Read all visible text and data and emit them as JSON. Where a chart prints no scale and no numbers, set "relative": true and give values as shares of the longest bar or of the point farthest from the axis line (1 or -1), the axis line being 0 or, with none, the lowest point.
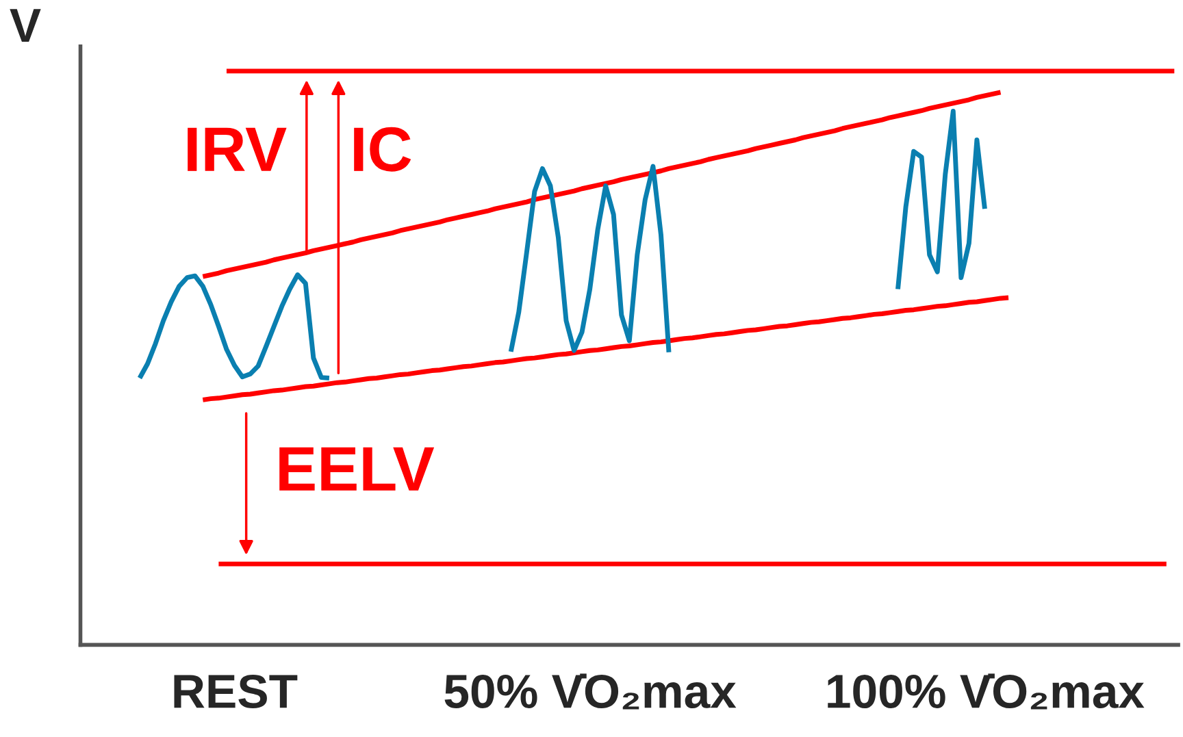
{
  "chart_data": {
    "type": "line",
    "relative": true,
    "ylabel": "V",
    "categories": [
      null,
      null,
      null,
      null,
      null,
      null,
      null,
      null,
      null,
      null,
      null,
      null,
      null,
      null,
      null,
      null,
      null,
      null,
      null,
      "REST",
      null,
      null,
      null,
      null,
      null,
      null,
      null,
      null,
      null,
      null,
      null,
      null,
      null,
      null,
      null,
      null,
      null,
      null,
      null,
      null,
      null,
      null,
      null,
      null,
      null,
      null,
      null,
      null,
      null,
      null,
      null,
      null,
      null,
      null,
      null,
      null,
      null,
      null,
      null,
      null,
      null,
      null,
      null,
      null,
      "50% V̇O₂max",
      null,
      null,
      null,
      null,
      null,
      null,
      null,
      null,
      null,
      null,
      null,
      null,
      null,
      null,
      null,
      null,
      null,
      null,
      null,
      null,
      null,
      null,
      null,
      null,
      null,
      null,
      null,
      null,
      null,
      null,
      null,
      null,
      null,
      null,
      null,
      null,
      null,
      null,
      null,
      null,
      null,
      null,
      null,
      null,
      null,
      null,
      null,
      null,
      null,
      "100% V̇O₂max",
      null,
      null,
      null,
      null,
      null,
      null,
      null,
      null,
      null,
      null,
      null,
      null,
      null,
      null,
      null,
      null,
      null,
      null,
      null,
      null,
      null,
      null,
      null,
      null
    ],
    "grid": false,
    "legend": false,
    "series": [
      {
        "color": "#ff0000",
        "values": [
          null,
          null,
          null,
          null,
          null,
          null,
          null,
          null,
          null,
          null,
          null,
          null,
          null,
          null,
          null,
          null,
          null,
          null,
          1.0,
          1.0,
          1.0,
          1.0,
          1.0,
          1.0,
          1.0,
          1.0,
          1.0,
          1.0,
          1.0,
          1.0,
          1.0,
          1.0,
          1.0,
          1.0,
          1.0,
          1.0,
          1.0,
          1.0,
          1.0,
          1.0,
          1.0,
          1.0,
          1.0,
          1.0,
          1.0,
          1.0,
          1.0,
          1.0,
          1.0,
          1.0,
          1.0,
          1.0,
          1.0,
          1.0,
          1.0,
          1.0,
          1.0,
          1.0,
          1.0,
          1.0,
          1.0,
          1.0,
          1.0,
          1.0,
          1.0,
          1.0,
          1.0,
          1.0,
          1.0,
          1.0,
          1.0,
          1.0,
          1.0,
          1.0,
          1.0,
          1.0,
          1.0,
          1.0,
          1.0,
          1.0,
          1.0,
          1.0,
          1.0,
          1.0,
          1.0,
          1.0,
          1.0,
          1.0,
          1.0,
          1.0,
          1.0,
          1.0,
          1.0,
          1.0,
          1.0,
          1.0,
          1.0,
          1.0,
          1.0,
          1.0,
          1.0,
          1.0,
          1.0,
          1.0,
          1.0,
          1.0,
          1.0,
          1.0,
          1.0,
          1.0,
          1.0,
          1.0,
          1.0,
          1.0,
          1.0,
          1.0,
          1.0,
          1.0,
          1.0,
          1.0,
          1.0,
          1.0,
          1.0,
          1.0,
          1.0,
          1.0,
          1.0,
          1.0,
          1.0,
          1.0,
          1.0,
          1.0,
          1.0,
          1.0,
          1.0,
          1.0,
          1.0,
          1.0,
          1.0
        ]
      },
      {
        "color": "#ff0000",
        "values": [
          null,
          null,
          null,
          null,
          null,
          null,
          null,
          null,
          null,
          null,
          null,
          null,
          null,
          null,
          null,
          0.642,
          0.645,
          0.648,
          0.652,
          0.655,
          0.658,
          0.661,
          0.664,
          0.667,
          0.671,
          0.674,
          0.677,
          0.68,
          0.683,
          0.687,
          0.69,
          0.693,
          0.696,
          0.699,
          0.702,
          0.706,
          0.709,
          0.712,
          0.715,
          0.718,
          0.722,
          0.725,
          0.728,
          0.731,
          0.734,
          0.737,
          0.741,
          0.744,
          0.747,
          0.75,
          0.753,
          0.756,
          0.76,
          0.763,
          0.766,
          0.769,
          0.772,
          0.776,
          0.779,
          0.782,
          0.785,
          0.788,
          0.791,
          0.795,
          0.798,
          0.801,
          0.804,
          0.807,
          0.811,
          0.814,
          0.817,
          0.82,
          0.823,
          0.826,
          0.83,
          0.833,
          0.836,
          0.839,
          0.842,
          0.846,
          0.849,
          0.852,
          0.855,
          0.858,
          0.861,
          0.865,
          0.868,
          0.871,
          0.874,
          0.877,
          0.88,
          0.884,
          0.887,
          0.89,
          0.893,
          0.896,
          0.9,
          0.903,
          0.906,
          0.909,
          0.912,
          0.915,
          0.919,
          0.922,
          0.925,
          0.928,
          0.931,
          0.935,
          0.938,
          0.941,
          0.944,
          0.947,
          0.95,
          0.954,
          0.957,
          0.96,
          0.963,
          null,
          null,
          null,
          null,
          null,
          null,
          null,
          null,
          null,
          null,
          null,
          null,
          null,
          null,
          null,
          null,
          null,
          null,
          null,
          null,
          null,
          null
        ]
      },
      {
        "color": "#ff0000",
        "values": [
          null,
          null,
          null,
          null,
          null,
          null,
          null,
          null,
          null,
          null,
          null,
          null,
          null,
          null,
          null,
          0.427,
          0.429,
          0.43,
          0.432,
          0.434,
          0.436,
          0.437,
          0.439,
          0.441,
          0.443,
          0.444,
          0.446,
          0.448,
          0.45,
          0.451,
          0.453,
          0.455,
          0.457,
          0.458,
          0.46,
          0.462,
          0.464,
          0.465,
          0.467,
          0.469,
          0.471,
          0.472,
          0.474,
          0.476,
          0.478,
          0.479,
          0.481,
          0.483,
          0.485,
          0.486,
          0.488,
          0.49,
          0.492,
          0.493,
          0.495,
          0.497,
          0.499,
          0.5,
          0.502,
          0.504,
          0.506,
          0.507,
          0.509,
          0.511,
          0.513,
          0.514,
          0.516,
          0.518,
          0.52,
          0.521,
          0.523,
          0.525,
          0.527,
          0.528,
          0.53,
          0.532,
          0.534,
          0.535,
          0.537,
          0.539,
          0.541,
          0.542,
          0.544,
          0.546,
          0.548,
          0.549,
          0.551,
          0.553,
          0.555,
          0.556,
          0.558,
          0.56,
          0.562,
          0.563,
          0.565,
          0.567,
          0.569,
          0.57,
          0.572,
          0.574,
          0.576,
          0.577,
          0.579,
          0.581,
          0.583,
          0.584,
          0.586,
          0.588,
          0.59,
          0.591,
          0.593,
          0.595,
          0.597,
          0.598,
          0.6,
          0.602,
          0.604,
          0.605,
          null,
          null,
          null,
          null,
          null,
          null,
          null,
          null,
          null,
          null,
          null,
          null,
          null,
          null,
          null,
          null,
          null,
          null,
          null,
          null,
          null
        ]
      },
      {
        "color": "#ff0000",
        "values": [
          null,
          null,
          null,
          null,
          null,
          null,
          null,
          null,
          null,
          null,
          null,
          null,
          null,
          null,
          null,
          null,
          null,
          0.141,
          0.141,
          0.141,
          0.141,
          0.141,
          0.141,
          0.141,
          0.141,
          0.141,
          0.141,
          0.141,
          0.141,
          0.141,
          0.141,
          0.141,
          0.141,
          0.141,
          0.141,
          0.141,
          0.141,
          0.141,
          0.141,
          0.141,
          0.141,
          0.141,
          0.141,
          0.141,
          0.141,
          0.141,
          0.141,
          0.141,
          0.141,
          0.141,
          0.141,
          0.141,
          0.141,
          0.141,
          0.141,
          0.141,
          0.141,
          0.141,
          0.141,
          0.141,
          0.141,
          0.141,
          0.141,
          0.141,
          0.141,
          0.141,
          0.141,
          0.141,
          0.141,
          0.141,
          0.141,
          0.141,
          0.141,
          0.141,
          0.141,
          0.141,
          0.141,
          0.141,
          0.141,
          0.141,
          0.141,
          0.141,
          0.141,
          0.141,
          0.141,
          0.141,
          0.141,
          0.141,
          0.141,
          0.141,
          0.141,
          0.141,
          0.141,
          0.141,
          0.141,
          0.141,
          0.141,
          0.141,
          0.141,
          0.141,
          0.141,
          0.141,
          0.141,
          0.141,
          0.141,
          0.141,
          0.141,
          0.141,
          0.141,
          0.141,
          0.141,
          0.141,
          0.141,
          0.141,
          0.141,
          0.141,
          0.141,
          0.141,
          0.141,
          0.141,
          0.141,
          0.141,
          0.141,
          0.141,
          0.141,
          0.141,
          0.141,
          0.141,
          0.141,
          0.141,
          0.141,
          0.141,
          0.141,
          0.141,
          0.141,
          0.141,
          0.141,
          0.141,
          null
        ]
      },
      {
        "color": "#0a7fb0",
        "values": [
          null,
          null,
          null,
          null,
          null,
          null,
          null,
          0.465,
          0.49,
          0.525,
          0.565,
          0.598,
          0.625,
          0.64,
          0.643,
          0.625,
          0.593,
          0.555,
          0.515,
          0.487,
          0.467,
          0.472,
          0.486,
          0.52,
          0.555,
          0.59,
          0.62,
          0.645,
          0.63,
          0.5,
          0.466,
          0.465,
          null,
          null,
          null,
          null,
          null,
          null,
          null,
          null,
          null,
          null,
          null,
          null,
          null,
          null,
          null,
          null,
          null,
          null,
          null,
          null,
          null,
          null,
          null,
          null,
          null,
          null,
          null,
          null,
          null,
          null,
          null,
          null,
          null,
          null,
          null,
          null,
          null,
          null,
          null,
          null,
          null,
          null,
          null,
          null,
          null,
          null,
          null,
          null,
          null,
          null,
          null,
          null,
          null,
          null,
          null,
          null,
          null,
          null,
          null,
          null,
          null,
          null,
          null,
          null,
          null,
          null,
          null,
          null,
          null,
          null,
          null,
          null,
          null,
          null,
          null,
          null,
          null,
          null,
          null,
          null,
          null,
          null,
          null,
          null,
          null,
          null,
          null,
          null,
          null,
          null,
          null,
          null,
          null,
          null,
          null,
          null,
          null,
          null,
          null,
          null,
          null,
          null,
          null,
          null,
          null,
          null,
          null
        ]
      },
      {
        "color": "#0a7fb0",
        "values": [
          null,
          null,
          null,
          null,
          null,
          null,
          null,
          null,
          null,
          null,
          null,
          null,
          null,
          null,
          null,
          null,
          null,
          null,
          null,
          null,
          null,
          null,
          null,
          null,
          null,
          null,
          null,
          null,
          null,
          null,
          null,
          null,
          null,
          null,
          null,
          null,
          null,
          null,
          null,
          null,
          null,
          null,
          null,
          null,
          null,
          null,
          null,
          null,
          null,
          null,
          null,
          null,
          null,
          null,
          0.511,
          0.58,
          0.684,
          0.79,
          0.83,
          0.8,
          0.71,
          0.565,
          0.513,
          0.545,
          0.62,
          0.724,
          0.8,
          0.75,
          0.575,
          0.53,
          0.68,
          0.776,
          0.834,
          0.715,
          0.51,
          null,
          null,
          null,
          null,
          null,
          null,
          null,
          null,
          null,
          null,
          null,
          null,
          null,
          null,
          null,
          null,
          null,
          null,
          null,
          null,
          null,
          null,
          null,
          null,
          null,
          null,
          null,
          null,
          null,
          null,
          null,
          null,
          null,
          null,
          null,
          null,
          null,
          null,
          null,
          null,
          null,
          null,
          null,
          null,
          null,
          null,
          null,
          null,
          null,
          null,
          null,
          null,
          null,
          null,
          null,
          null,
          null,
          null,
          null,
          null,
          null,
          null,
          null,
          null
        ]
      },
      {
        "color": "#0a7fb0",
        "values": [
          null,
          null,
          null,
          null,
          null,
          null,
          null,
          null,
          null,
          null,
          null,
          null,
          null,
          null,
          null,
          null,
          null,
          null,
          null,
          null,
          null,
          null,
          null,
          null,
          null,
          null,
          null,
          null,
          null,
          null,
          null,
          null,
          null,
          null,
          null,
          null,
          null,
          null,
          null,
          null,
          null,
          null,
          null,
          null,
          null,
          null,
          null,
          null,
          null,
          null,
          null,
          null,
          null,
          null,
          null,
          null,
          null,
          null,
          null,
          null,
          null,
          null,
          null,
          null,
          null,
          null,
          null,
          null,
          null,
          null,
          null,
          null,
          null,
          null,
          null,
          null,
          null,
          null,
          null,
          null,
          null,
          null,
          null,
          null,
          null,
          null,
          null,
          null,
          null,
          null,
          null,
          null,
          null,
          null,
          null,
          null,
          null,
          null,
          null,
          null,
          null,
          null,
          null,
          0.62,
          0.763,
          0.86,
          0.85,
          0.68,
          0.65,
          0.82,
          0.93,
          0.64,
          0.7,
          0.88,
          0.76,
          null,
          null,
          null,
          null,
          null,
          null,
          null,
          null,
          null,
          null,
          null,
          null,
          null,
          null,
          null,
          null,
          null,
          null,
          null,
          null,
          null,
          null,
          null,
          null
        ]
      }
    ],
    "annotations": [
      "IRV",
      "IC",
      "EELV"
    ]
  }
}
